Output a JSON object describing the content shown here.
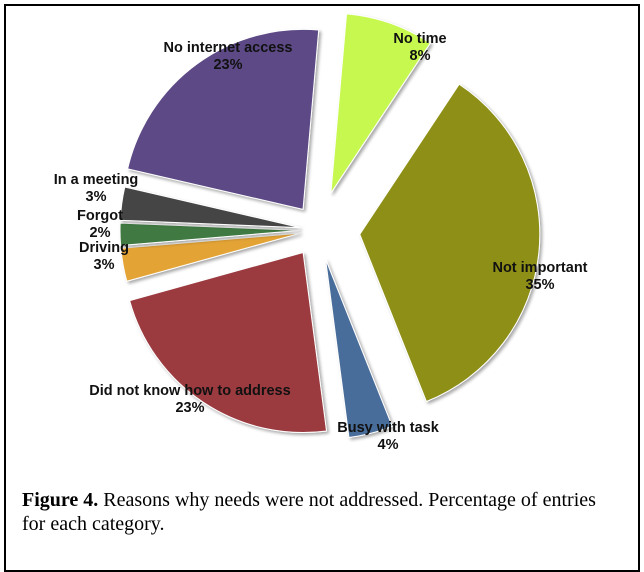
{
  "chart_data": {
    "type": "pie",
    "slices": [
      {
        "label": "No time",
        "pct_label": "8%",
        "value": 8,
        "color": "#c6f84f"
      },
      {
        "label": "Not important",
        "pct_label": "35%",
        "value": 35,
        "color": "#8d8f12"
      },
      {
        "label": "Busy with task",
        "pct_label": "4%",
        "value": 4,
        "color": "#4a6d9a"
      },
      {
        "label": "Did not know how to address",
        "pct_label": "23%",
        "value": 23,
        "color": "#9b3a3f"
      },
      {
        "label": "Driving",
        "pct_label": "3%",
        "value": 3,
        "color": "#e3a334"
      },
      {
        "label": "Forgot",
        "pct_label": "2%",
        "value": 2,
        "color": "#3f7a42"
      },
      {
        "label": "In a meeting",
        "pct_label": "3%",
        "value": 3,
        "color": "#444444"
      },
      {
        "label": "No internet access",
        "pct_label": "23%",
        "value": 23,
        "color": "#5b4a85"
      }
    ]
  },
  "caption": {
    "lead": "Figure 4.",
    "text": "Reasons why needs were not addressed. Percentage of entries for each category."
  }
}
